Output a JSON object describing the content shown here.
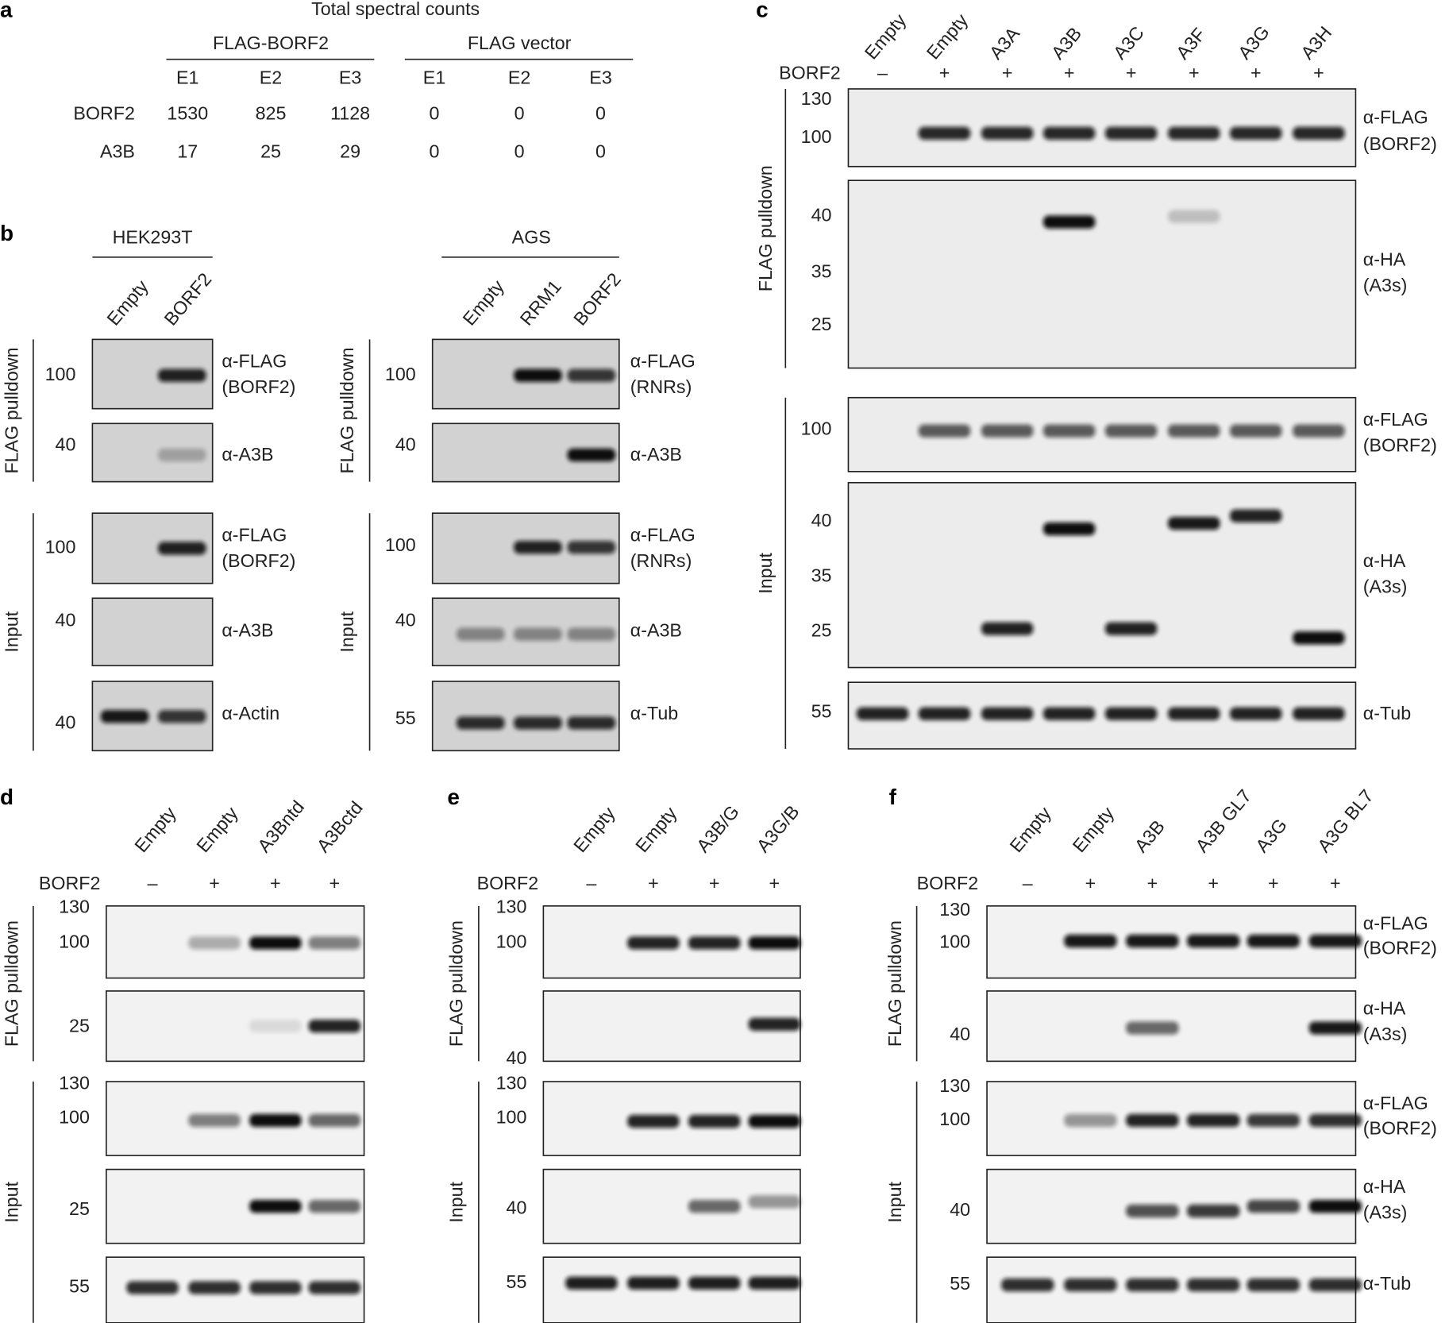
{
  "panels": [
    {
      "label": "a",
      "title": "Total spectral counts",
      "groups": [
        "FLAG-BORF2",
        "FLAG vector"
      ],
      "columns": [
        "E1",
        "E2",
        "E3",
        "E1",
        "E2",
        "E3"
      ],
      "rows": [
        {
          "label": "BORF2",
          "values": [
            1530,
            825,
            1128,
            0,
            0,
            0
          ]
        },
        {
          "label": "A3B",
          "values": [
            17,
            25,
            29,
            0,
            0,
            0
          ]
        }
      ]
    },
    {
      "label": "b",
      "groups": [
        {
          "title": "HEK293T",
          "lanes": [
            "Empty",
            "BORF2"
          ],
          "sections": [
            {
              "label": "FLAG pulldown",
              "blots": [
                {
                  "markers": [
                    100
                  ],
                  "antibody": [
                    "α-FLAG",
                    "(BORF2)"
                  ]
                },
                {
                  "markers": [
                    40
                  ],
                  "antibody": [
                    "α-A3B"
                  ]
                }
              ]
            },
            {
              "label": "Input",
              "blots": [
                {
                  "markers": [
                    100
                  ],
                  "antibody": [
                    "α-FLAG",
                    "(BORF2)"
                  ]
                },
                {
                  "markers": [
                    40
                  ],
                  "antibody": [
                    "α-A3B"
                  ]
                },
                {
                  "markers": [
                    40
                  ],
                  "antibody": [
                    "α-Actin"
                  ]
                }
              ]
            }
          ]
        },
        {
          "title": "AGS",
          "lanes": [
            "Empty",
            "RRM1",
            "BORF2"
          ],
          "sections": [
            {
              "label": "FLAG pulldown",
              "blots": [
                {
                  "markers": [
                    100
                  ],
                  "antibody": [
                    "α-FLAG",
                    "(RNRs)"
                  ]
                },
                {
                  "markers": [
                    40
                  ],
                  "antibody": [
                    "α-A3B"
                  ]
                }
              ]
            },
            {
              "label": "Input",
              "blots": [
                {
                  "markers": [
                    100
                  ],
                  "antibody": [
                    "α-FLAG",
                    "(RNRs)"
                  ]
                },
                {
                  "markers": [
                    40
                  ],
                  "antibody": [
                    "α-A3B"
                  ]
                },
                {
                  "markers": [
                    55
                  ],
                  "antibody": [
                    "α-Tub"
                  ]
                }
              ]
            }
          ]
        }
      ]
    },
    {
      "label": "c",
      "lanes": [
        "Empty",
        "Empty",
        "A3A",
        "A3B",
        "A3C",
        "A3F",
        "A3G",
        "A3H"
      ],
      "borf2": {
        "label": "BORF2",
        "signs": [
          "–",
          "+",
          "+",
          "+",
          "+",
          "+",
          "+",
          "+"
        ]
      },
      "sections": [
        {
          "label": "FLAG pulldown",
          "blots": [
            {
              "markers": [
                130,
                100
              ],
              "antibody": [
                "α-FLAG",
                "(BORF2)"
              ]
            },
            {
              "markers": [
                40,
                35,
                25
              ],
              "antibody": [
                "α-HA",
                "(A3s)"
              ]
            }
          ]
        },
        {
          "label": "Input",
          "blots": [
            {
              "markers": [
                100
              ],
              "antibody": [
                "α-FLAG",
                "(BORF2)"
              ]
            },
            {
              "markers": [
                40,
                35,
                25
              ],
              "antibody": [
                "α-HA",
                "(A3s)"
              ]
            },
            {
              "markers": [
                55
              ],
              "antibody": [
                "α-Tub"
              ]
            }
          ]
        }
      ]
    },
    {
      "label": "d",
      "lanes": [
        "Empty",
        "Empty",
        "A3Bntd",
        "A3Bctd"
      ],
      "borf2": {
        "label": "BORF2",
        "signs": [
          "–",
          "+",
          "+",
          "+"
        ]
      },
      "sections": [
        {
          "label": "FLAG pulldown",
          "blots": [
            {
              "markers": [
                130,
                100
              ]
            },
            {
              "markers": [
                25
              ]
            }
          ]
        },
        {
          "label": "Input",
          "blots": [
            {
              "markers": [
                130,
                100
              ]
            },
            {
              "markers": [
                25
              ]
            },
            {
              "markers": [
                55
              ]
            }
          ]
        }
      ]
    },
    {
      "label": "e",
      "lanes": [
        "Empty",
        "Empty",
        "A3B/G",
        "A3G/B"
      ],
      "borf2": {
        "label": "BORF2",
        "signs": [
          "–",
          "+",
          "+",
          "+"
        ]
      },
      "sections": [
        {
          "label": "FLAG pulldown",
          "blots": [
            {
              "markers": [
                130,
                100
              ]
            },
            {
              "markers": [
                40
              ]
            }
          ]
        },
        {
          "label": "Input",
          "blots": [
            {
              "markers": [
                130,
                100
              ]
            },
            {
              "markers": [
                40
              ]
            },
            {
              "markers": [
                55
              ]
            }
          ]
        }
      ]
    },
    {
      "label": "f",
      "lanes": [
        "Empty",
        "Empty",
        "A3B",
        "A3B GL7",
        "A3G",
        "A3G BL7"
      ],
      "borf2": {
        "label": "BORF2",
        "signs": [
          "–",
          "+",
          "+",
          "+",
          "+",
          "+"
        ]
      },
      "sections": [
        {
          "label": "FLAG pulldown",
          "blots": [
            {
              "markers": [
                130,
                100
              ],
              "antibody": [
                "α-FLAG",
                "(BORF2)"
              ]
            },
            {
              "markers": [
                40
              ],
              "antibody": [
                "α-HA",
                "(A3s)"
              ]
            }
          ]
        },
        {
          "label": "Input",
          "blots": [
            {
              "markers": [
                130,
                100
              ],
              "antibody": [
                "α-FLAG",
                "(BORF2)"
              ]
            },
            {
              "markers": [
                40
              ],
              "antibody": [
                "α-HA",
                "(A3s)"
              ]
            },
            {
              "markers": [
                55
              ],
              "antibody": [
                "α-Tub"
              ]
            }
          ]
        }
      ]
    }
  ]
}
